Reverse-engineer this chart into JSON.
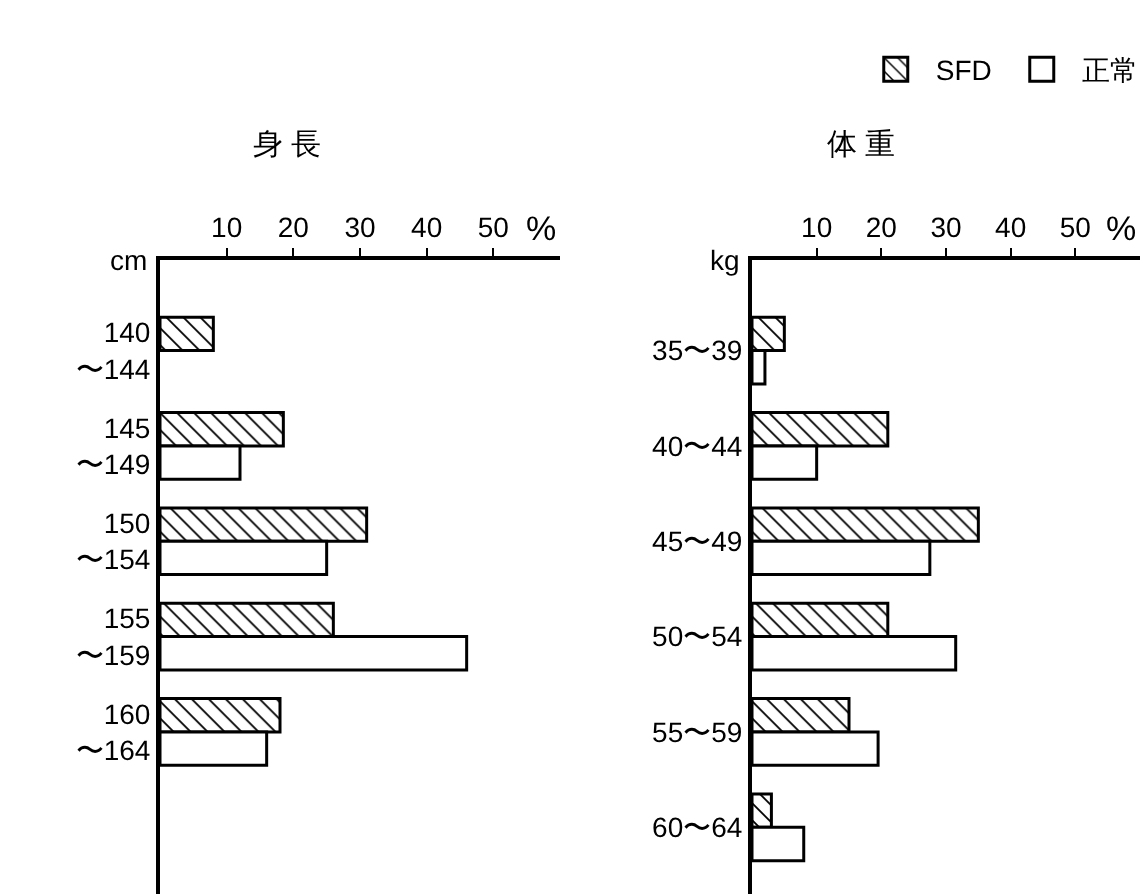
{
  "chart_data": [
    {
      "type": "bar",
      "orientation": "horizontal",
      "title": "身 長",
      "xlabel": "%",
      "ylabel": "cm",
      "categories": [
        "140\n〜144",
        "145\n〜149",
        "150\n〜154",
        "155\n〜159",
        "160\n〜164"
      ],
      "series": [
        {
          "color": "#000000",
          "values": [
            8,
            18.5,
            31,
            26,
            18
          ]
        },
        {
          "color": "#ffffff",
          "values": [
            null,
            12,
            25,
            46,
            16
          ]
        }
      ],
      "xlim": [
        0,
        60
      ],
      "xticks": [
        10,
        20,
        30,
        40,
        50
      ],
      "grid": false,
      "legend": false
    },
    {
      "type": "bar",
      "orientation": "horizontal",
      "title": "体 重",
      "xlabel": "%",
      "ylabel": "kg",
      "categories": [
        "35〜39",
        "40〜44",
        "45〜49",
        "50〜54",
        "55〜59",
        "60〜64"
      ],
      "series": [
        {
          "name": "SFD",
          "color": "#000000",
          "values": [
            5,
            21,
            35,
            21,
            15,
            3
          ]
        },
        {
          "name": "正常",
          "color": "#ffffff",
          "values": [
            2,
            10,
            27.5,
            31.5,
            19.5,
            8
          ]
        }
      ],
      "xlim": [
        0,
        60
      ],
      "xticks": [
        10,
        20,
        30,
        40,
        50
      ],
      "grid": false,
      "legend": "top right"
    }
  ]
}
